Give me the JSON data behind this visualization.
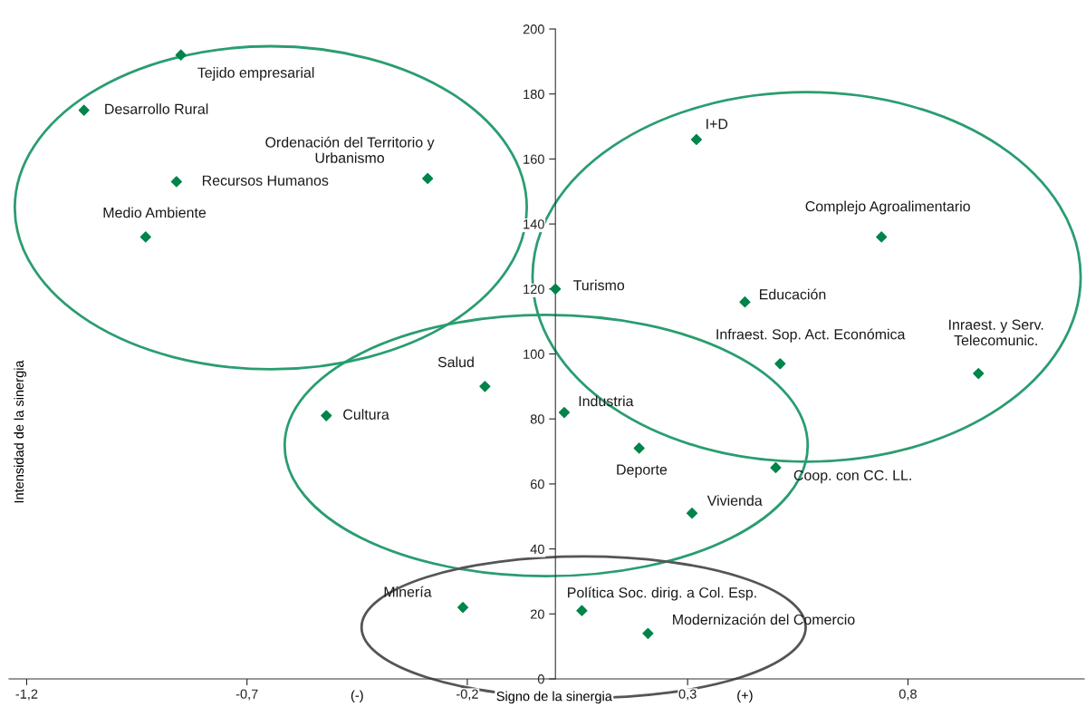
{
  "chart_data": {
    "type": "scatter",
    "xlabel": "Signo de la sinergia",
    "ylabel": "Intensidad de la sinergia",
    "annotations": [
      "(-)",
      "(+)"
    ],
    "xlim": [
      -1.24,
      1.2
    ],
    "ylim": [
      0,
      200
    ],
    "xticks": [
      {
        "value": -1.2,
        "label": "-1,2"
      },
      {
        "value": -0.7,
        "label": "-0,7"
      },
      {
        "value": -0.2,
        "label": "-0,2"
      },
      {
        "value": 0.3,
        "label": "0,3"
      },
      {
        "value": 0.8,
        "label": "0,8"
      }
    ],
    "yticks": [
      0,
      20,
      40,
      60,
      80,
      100,
      120,
      140,
      160,
      180,
      200
    ],
    "marker": "diamond",
    "grid": false,
    "legend": false,
    "series": [
      {
        "name": "Tejido empresarial",
        "color": "#00844a",
        "x": [
          -0.85
        ],
        "values": [
          192
        ]
      },
      {
        "name": "Desarrollo Rural",
        "color": "#00844a",
        "x": [
          -1.07
        ],
        "values": [
          175
        ]
      },
      {
        "name": "Recursos Humanos",
        "color": "#00844a",
        "x": [
          -0.86
        ],
        "values": [
          153
        ]
      },
      {
        "name": "Ordenación del Territorio y\nUrbanismo",
        "color": "#00844a",
        "x": [
          -0.29
        ],
        "values": [
          154
        ]
      },
      {
        "name": "Medio Ambiente",
        "color": "#00844a",
        "x": [
          -0.93
        ],
        "values": [
          136
        ]
      },
      {
        "name": "I+D",
        "color": "#00844a",
        "x": [
          0.32
        ],
        "values": [
          166
        ]
      },
      {
        "name": "Complejo Agroalimentario",
        "color": "#00844a",
        "x": [
          0.74
        ],
        "values": [
          136
        ]
      },
      {
        "name": "Turismo",
        "color": "#00844a",
        "x": [
          0.0
        ],
        "values": [
          120
        ]
      },
      {
        "name": "Educación",
        "color": "#00844a",
        "x": [
          0.43
        ],
        "values": [
          116
        ]
      },
      {
        "name": "Infraest. Sop. Act. Económica",
        "color": "#00844a",
        "x": [
          0.51
        ],
        "values": [
          97
        ]
      },
      {
        "name": "Inraest. y Serv.\nTelecomunic.",
        "color": "#00844a",
        "x": [
          0.96
        ],
        "values": [
          94
        ]
      },
      {
        "name": "Salud",
        "color": "#00844a",
        "x": [
          -0.16
        ],
        "values": [
          90
        ]
      },
      {
        "name": "Cultura",
        "color": "#00844a",
        "x": [
          -0.52
        ],
        "values": [
          81
        ]
      },
      {
        "name": "Industria",
        "color": "#00844a",
        "x": [
          0.02
        ],
        "values": [
          82
        ]
      },
      {
        "name": "Deporte",
        "color": "#00844a",
        "x": [
          0.19
        ],
        "values": [
          71
        ]
      },
      {
        "name": "Coop. con CC. LL.",
        "color": "#00844a",
        "x": [
          0.5
        ],
        "values": [
          65
        ]
      },
      {
        "name": "Vivienda",
        "color": "#00844a",
        "x": [
          0.31
        ],
        "values": [
          51
        ]
      },
      {
        "name": "Minería",
        "color": "#00844a",
        "x": [
          -0.21
        ],
        "values": [
          22
        ]
      },
      {
        "name": "Política Soc. dirig. a Col. Esp.",
        "color": "#00844a",
        "x": [
          0.06
        ],
        "values": [
          21
        ]
      },
      {
        "name": "Modernización del Comercio",
        "color": "#00844a",
        "x": [
          0.21
        ],
        "values": [
          14
        ]
      }
    ]
  }
}
